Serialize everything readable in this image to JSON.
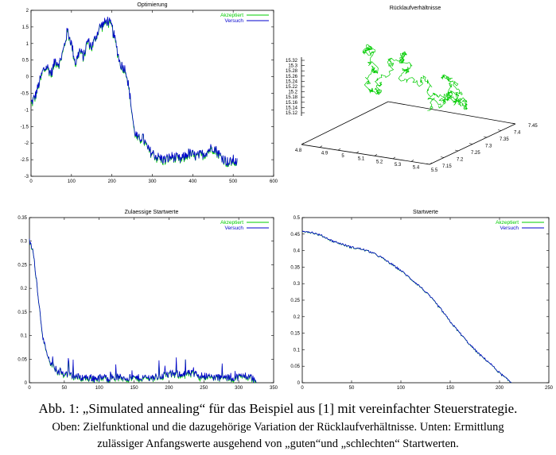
{
  "chart_data": [
    {
      "type": "line",
      "title": "Optimierung",
      "legend": [
        "Akzeptiert",
        "Versuch"
      ],
      "legend_placement": "top-right",
      "colors": {
        "accepted": "#00cc00",
        "trial": "#0000cc"
      },
      "xlim": [
        0,
        600
      ],
      "ylim": [
        -3,
        2
      ],
      "xticks": [
        "0",
        "100",
        "200",
        "300",
        "400",
        "500",
        "600"
      ],
      "yticks": [
        "2",
        "1.5",
        "1",
        "0.5",
        "0",
        "-0.5",
        "-1",
        "-1.5",
        "-2",
        "-2.5",
        "-3"
      ],
      "series_shape": [
        [
          0,
          -0.8
        ],
        [
          10,
          -0.6
        ],
        [
          20,
          -0.2
        ],
        [
          30,
          0.2
        ],
        [
          40,
          0.3
        ],
        [
          50,
          0.1
        ],
        [
          60,
          0.5
        ],
        [
          70,
          0.4
        ],
        [
          80,
          0.8
        ],
        [
          90,
          1.4
        ],
        [
          100,
          1.0
        ],
        [
          110,
          0.4
        ],
        [
          120,
          0.8
        ],
        [
          130,
          0.6
        ],
        [
          140,
          1.1
        ],
        [
          150,
          0.9
        ],
        [
          160,
          1.2
        ],
        [
          170,
          1.5
        ],
        [
          180,
          1.6
        ],
        [
          190,
          1.7
        ],
        [
          200,
          1.5
        ],
        [
          210,
          1.0
        ],
        [
          220,
          0.4
        ],
        [
          235,
          0.2
        ],
        [
          245,
          -0.6
        ],
        [
          255,
          -1.6
        ],
        [
          265,
          -1.9
        ],
        [
          275,
          -1.8
        ],
        [
          290,
          -2.2
        ],
        [
          310,
          -2.4
        ],
        [
          330,
          -2.5
        ],
        [
          350,
          -2.4
        ],
        [
          370,
          -2.5
        ],
        [
          390,
          -2.3
        ],
        [
          410,
          -2.4
        ],
        [
          430,
          -2.3
        ],
        [
          450,
          -2.1
        ],
        [
          470,
          -2.4
        ],
        [
          490,
          -2.6
        ],
        [
          500,
          -2.5
        ],
        [
          510,
          -2.6
        ]
      ]
    },
    {
      "type": "scatter3d",
      "title": "Rücklaufverhältnisse",
      "color": "#00cc00",
      "x_ticks": [
        "4.8",
        "4.9",
        "5",
        "5.1",
        "5.2",
        "5.3",
        "5.4",
        "5.5"
      ],
      "y_ticks": [
        "7.15",
        "7.2",
        "7.25",
        "7.3",
        "7.35",
        "7.4",
        "7.45"
      ],
      "z_ticks": [
        "15.32",
        "15.3",
        "15.28",
        "15.26",
        "15.24",
        "15.22",
        "15.2",
        "15.18",
        "15.16",
        "15.14",
        "15.12"
      ]
    },
    {
      "type": "line",
      "title": "Zulaessige Startwerte",
      "legend": [
        "Akzeptiert",
        "Versuch"
      ],
      "legend_placement": "top-right",
      "colors": {
        "accepted": "#00cc00",
        "trial": "#0000cc"
      },
      "xlim": [
        0,
        350
      ],
      "ylim": [
        0,
        0.35
      ],
      "xticks": [
        "0",
        "50",
        "100",
        "150",
        "200",
        "250",
        "300",
        "350"
      ],
      "yticks": [
        "0.35",
        "0.3",
        "0.25",
        "0.2",
        "0.15",
        "0.1",
        "0.05",
        "0"
      ],
      "series_shape": [
        [
          0,
          0.3
        ],
        [
          5,
          0.28
        ],
        [
          10,
          0.22
        ],
        [
          15,
          0.15
        ],
        [
          20,
          0.09
        ],
        [
          25,
          0.06
        ],
        [
          30,
          0.04
        ],
        [
          40,
          0.025
        ],
        [
          50,
          0.02
        ],
        [
          70,
          0.012
        ],
        [
          100,
          0.01
        ],
        [
          120,
          0.012
        ],
        [
          150,
          0.01
        ],
        [
          180,
          0.012
        ],
        [
          200,
          0.018
        ],
        [
          230,
          0.02
        ],
        [
          260,
          0.012
        ],
        [
          290,
          0.01
        ],
        [
          310,
          0.015
        ],
        [
          320,
          0.01
        ],
        [
          325,
          0.0
        ]
      ]
    },
    {
      "type": "line",
      "title": "Startwerte",
      "legend": [
        "Akzeptiert",
        "Versuch"
      ],
      "legend_placement": "top-right",
      "colors": {
        "accepted": "#00cc00",
        "trial": "#0000cc"
      },
      "xlim": [
        0,
        250
      ],
      "ylim": [
        0,
        0.5
      ],
      "xticks": [
        "0",
        "50",
        "100",
        "150",
        "200",
        "250"
      ],
      "yticks": [
        "0.5",
        "0.45",
        "0.4",
        "0.35",
        "0.3",
        "0.25",
        "0.2",
        "0.15",
        "0.1",
        "0.05",
        "0"
      ],
      "series_shape": [
        [
          0,
          0.46
        ],
        [
          10,
          0.455
        ],
        [
          20,
          0.445
        ],
        [
          30,
          0.43
        ],
        [
          40,
          0.42
        ],
        [
          50,
          0.41
        ],
        [
          60,
          0.405
        ],
        [
          70,
          0.395
        ],
        [
          80,
          0.38
        ],
        [
          90,
          0.36
        ],
        [
          100,
          0.34
        ],
        [
          110,
          0.315
        ],
        [
          120,
          0.29
        ],
        [
          130,
          0.26
        ],
        [
          140,
          0.225
        ],
        [
          150,
          0.185
        ],
        [
          160,
          0.15
        ],
        [
          170,
          0.115
        ],
        [
          180,
          0.085
        ],
        [
          190,
          0.06
        ],
        [
          200,
          0.03
        ],
        [
          210,
          0.005
        ],
        [
          212,
          0.0
        ]
      ]
    }
  ],
  "caption": {
    "line1": "Abb. 1: „Simulated annealing“ für das Beispiel aus [1] mit vereinfachter Steuerstrategie.",
    "line2": "Oben: Zielfunktional und die dazugehörige Variation der Rücklaufverhältnisse. Unten: Ermittlung",
    "line3": "zulässiger Anfangswerte ausgehend von „guten“und „schlechten“ Startwerten."
  }
}
